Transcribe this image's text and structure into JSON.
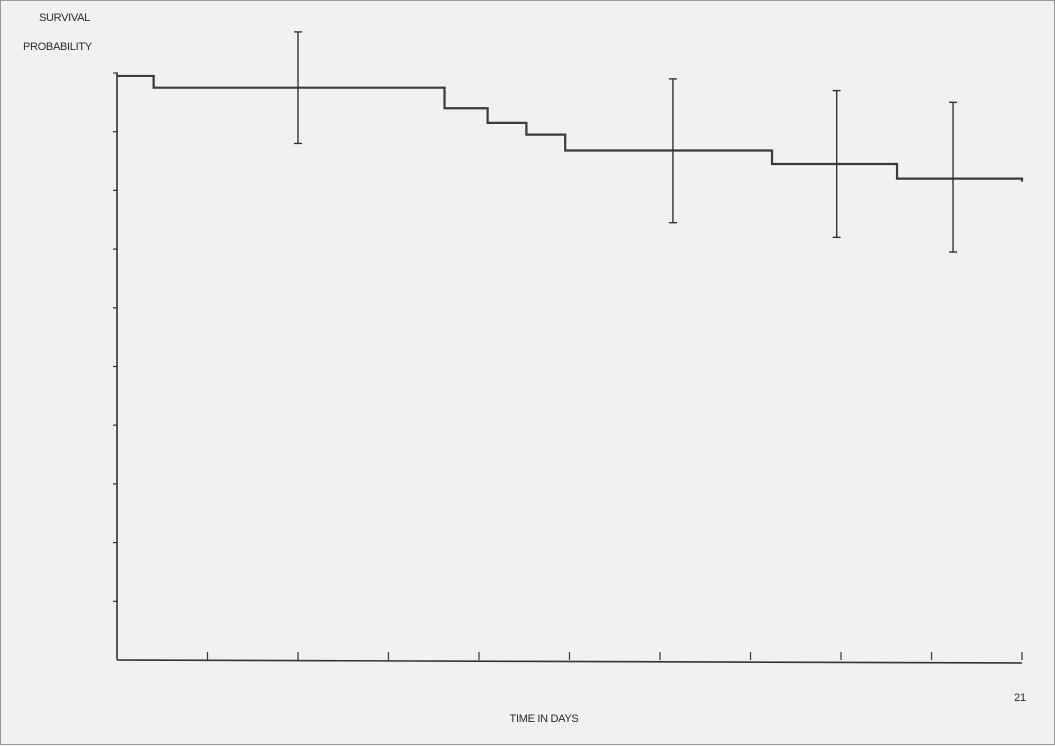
{
  "chart_data": {
    "type": "line",
    "step": true,
    "ylabel_line1": "SURVIVAL",
    "ylabel_line2": "PROBABILITY",
    "xlabel": "TIME IN DAYS",
    "xlim": [
      0,
      21
    ],
    "ylim": [
      0,
      1
    ],
    "x_tick_count": 10,
    "y_tick_count": 10,
    "x_tick_labels": [
      {
        "x": 21,
        "label": "21"
      }
    ],
    "grid": false,
    "series": [
      {
        "steps": [
          {
            "x": 0,
            "y": 0.995
          },
          {
            "x": 0.85,
            "y": 0.975
          },
          {
            "x": 7.6,
            "y": 0.94
          },
          {
            "x": 8.6,
            "y": 0.915
          },
          {
            "x": 9.5,
            "y": 0.895
          },
          {
            "x": 10.4,
            "y": 0.868
          },
          {
            "x": 15.2,
            "y": 0.845
          },
          {
            "x": 18.1,
            "y": 0.82
          },
          {
            "x": 21,
            "y": 0.815
          }
        ]
      }
    ],
    "error_bars": [
      {
        "x": 4.2,
        "y": 0.975,
        "low": 0.88,
        "high": 1.07
      },
      {
        "x": 12.9,
        "y": 0.868,
        "low": 0.745,
        "high": 0.99
      },
      {
        "x": 16.7,
        "y": 0.845,
        "low": 0.72,
        "high": 0.97
      },
      {
        "x": 19.4,
        "y": 0.82,
        "low": 0.695,
        "high": 0.95
      }
    ]
  }
}
